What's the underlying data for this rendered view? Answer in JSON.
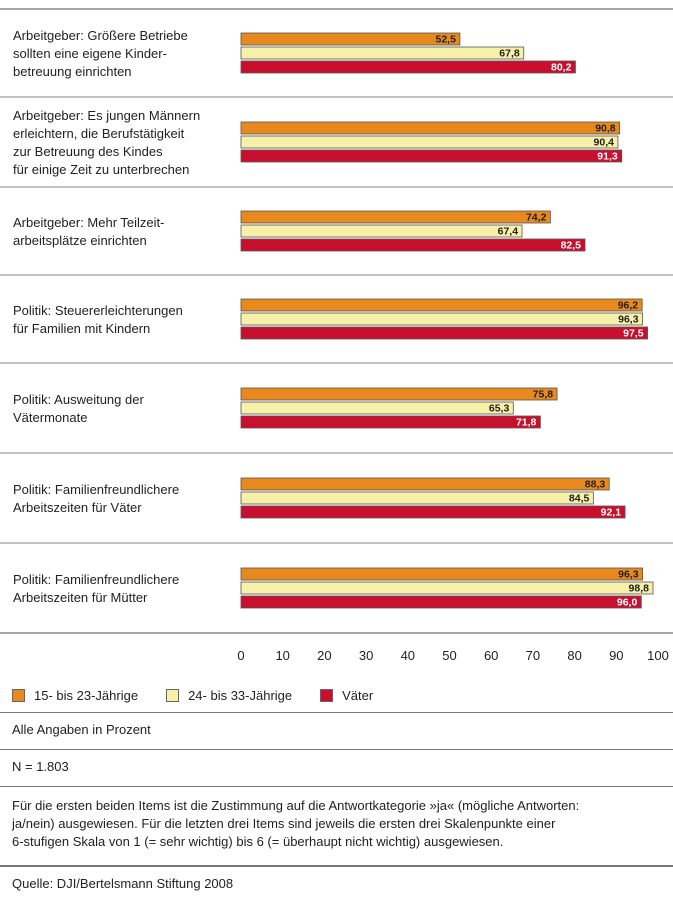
{
  "chart_data": {
    "type": "bar",
    "orientation": "horizontal",
    "categories": [
      "Arbeitgeber: Größere Betriebe sollten eine eigene Kinder-betreuung einrichten",
      "Arbeitgeber: Es jungen Männern erleichtern, die Berufstätigkeit zur Betreuung des Kindes für einige Zeit zu unterbrechen",
      "Arbeitgeber: Mehr Teilzeit-arbeitsplätze einrichten",
      "Politik: Steuererleichterungen für Familien mit Kindern",
      "Politik: Ausweitung der Vätermonate",
      "Politik: Familienfreundlichere Arbeitszeiten für Väter",
      "Politik: Familienfreundlichere Arbeitszeiten für Mütter"
    ],
    "category_lines": [
      [
        "Arbeitgeber: Größere Betriebe",
        "sollten eine eigene Kinder-",
        "betreuung einrichten"
      ],
      [
        "Arbeitgeber: Es jungen Männern",
        "erleichtern, die Berufstätigkeit",
        "zur Betreuung des Kindes",
        "für einige Zeit zu unterbrechen"
      ],
      [
        "Arbeitgeber: Mehr Teilzeit-",
        "arbeitsplätze einrichten"
      ],
      [
        "Politik: Steuererleichterungen",
        "für Familien mit Kindern"
      ],
      [
        "Politik: Ausweitung der",
        "Vätermonate"
      ],
      [
        "Politik: Familienfreundlichere",
        "Arbeitszeiten für Väter"
      ],
      [
        "Politik: Familienfreundlichere",
        "Arbeitszeiten für Mütter"
      ]
    ],
    "series": [
      {
        "name": "15- bis 23-Jährige",
        "color": "#e8891e",
        "values": [
          52.5,
          90.8,
          74.2,
          96.2,
          75.8,
          88.3,
          96.3
        ],
        "labels": [
          "52,5",
          "90,8",
          "74,2",
          "96,2",
          "75,8",
          "88,3",
          "96,3"
        ]
      },
      {
        "name": "24- bis 33-Jährige",
        "color": "#f7f0a8",
        "values": [
          67.8,
          90.4,
          67.4,
          96.3,
          65.3,
          84.5,
          98.8
        ],
        "labels": [
          "67,8",
          "90,4",
          "67,4",
          "96,3",
          "65,3",
          "84,5",
          "98,8"
        ]
      },
      {
        "name": "Väter",
        "color": "#c8102e",
        "values": [
          80.2,
          91.3,
          82.5,
          97.5,
          71.8,
          92.1,
          96.0
        ],
        "labels": [
          "80,2",
          "91,3",
          "82,5",
          "97,5",
          "71,8",
          "92,1",
          "96,0"
        ]
      }
    ],
    "xlim": [
      0,
      100
    ],
    "xticks": [
      "0",
      "10",
      "20",
      "30",
      "40",
      "50",
      "60",
      "70",
      "80",
      "90",
      "100"
    ],
    "grid": false,
    "legend_position": "bottom"
  },
  "notes": {
    "unit": "Alle Angaben in Prozent",
    "n": "N = 1.803",
    "footnote_lines": [
      "Für die ersten beiden Items ist die Zustimmung auf die Antwortkategorie »ja« (mögliche Antworten:",
      "ja/nein) ausgewiesen. Für die letzten drei Items sind jeweils die ersten drei Skalenpunkte einer",
      "6-stufigen Skala von 1 (= sehr wichtig) bis 6 (= überhaupt nicht wichtig) ausgewiesen."
    ],
    "source": "Quelle: DJI/Bertelsmann Stiftung 2008"
  }
}
